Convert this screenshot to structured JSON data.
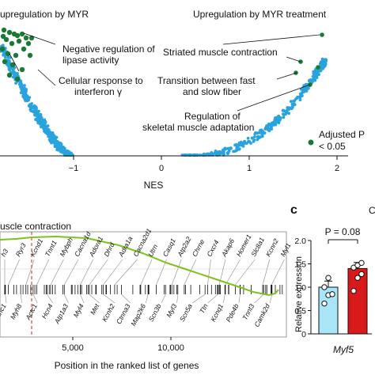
{
  "panel_top": {
    "annotations": {
      "up_left": "upregulation by MYR",
      "up_right": "Upregulation by MYR treatment",
      "neg_lipase_1": "Negative regulation of",
      "neg_lipase_2": "lipase activity",
      "cell_ifn_1": "Cellular response to",
      "cell_ifn_2": "interferon γ",
      "striated": "Striated muscle contraction",
      "transition_1": "Transition between fast",
      "transition_2": "and slow fiber",
      "regulation_1": "Regulation of",
      "regulation_2": "skeletal muscle adaptation",
      "legend_1": "Adjusted P",
      "legend_2": "< 0.05"
    },
    "xlabel": "NES",
    "xticks": [
      "−1",
      "0",
      "1",
      "2"
    ],
    "colors": {
      "significant": "#1a7a33",
      "other": "#29a3dd"
    }
  },
  "panel_bottom": {
    "title": "uscle contraction",
    "xlabel": "Position in the ranked list of genes",
    "xticks": [
      "5,000",
      "10,000"
    ],
    "top_genes": [
      "h3",
      "Ryr3",
      "Kcnd1",
      "Tnnt1",
      "Mybph",
      "Cacna1d",
      "Adora1",
      "Dhrd",
      "Adra1a",
      "Cacna2d1",
      "Utrn",
      "Casq1",
      "Atp2a2",
      "Chrne",
      "Cxcr4",
      "Akap6",
      "Homer1",
      "Slc8a1",
      "Kcnn2",
      "Myl1"
    ],
    "bottom_genes": [
      "Tnnc1",
      "Myh8",
      "Actc1",
      "Hcn4",
      "Atp1a3",
      "Myl4",
      "Met",
      "Kcnh2",
      "Ctnna3",
      "Map2k6",
      "Scn3b",
      "Myl3",
      "Scn5a",
      "Ttn",
      "Kcnq1",
      "Pde4b",
      "Tnnt3",
      "Camk2d"
    ],
    "colors": {
      "curve": "#7dc21e",
      "dashed": "#cc2222"
    }
  },
  "panel_c": {
    "letter": "c",
    "corner_letter": "C",
    "pvalue": "P = 0.08",
    "ylabel": "Relative expression",
    "yticks": [
      "0",
      "0.5",
      "1.0",
      "1.5",
      "2.0"
    ],
    "xlabel": "Myf5",
    "colors": {
      "control": "#a8e6f7",
      "myr": "#d91a1a"
    }
  },
  "chart_data": {
    "type": "bar",
    "categories": [
      "Myf5"
    ],
    "series": [
      {
        "values": [
          1.0
        ],
        "points": [
          0.65,
          0.83,
          0.85,
          1.0,
          1.2
        ]
      },
      {
        "values": [
          1.4
        ],
        "points": [
          0.92,
          1.2,
          1.28,
          1.42,
          1.47,
          1.52
        ]
      }
    ],
    "errors": [
      0.13,
      0.13
    ],
    "ylabel": "Relative expression",
    "ylim": [
      0,
      2.0
    ],
    "annotation": "P = 0.08"
  }
}
